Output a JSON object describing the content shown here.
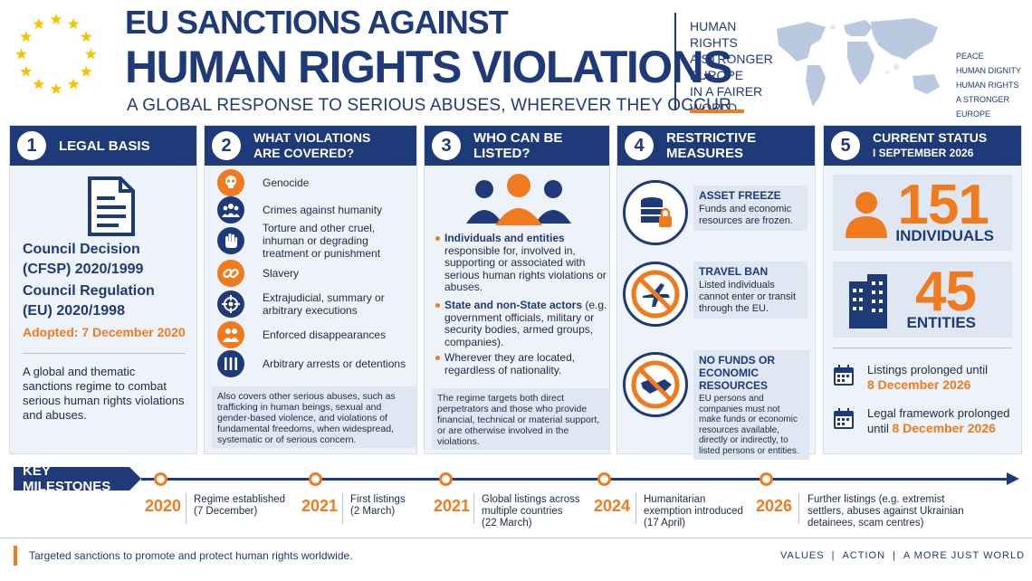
{
  "header": {
    "title_line1": "EU SANCTIONS AGAINST",
    "title_line2": "HUMAN RIGHTS VIOLATIONS",
    "subtitle": "A GLOBAL RESPONSE TO SERIOUS ABUSES, WHEREVER THEY OCCUR",
    "tagline": [
      "HUMAN",
      "RIGHTS",
      "A STRONGER",
      "EUROPE",
      "IN A FAIRER",
      "WORLD"
    ],
    "map_labels": [
      "PEACE",
      "HUMAN DIGNITY",
      "HUMAN RIGHTS",
      "A STRONGER EUROPE"
    ]
  },
  "panels": {
    "legal": {
      "number": "1",
      "title": "LEGAL BASIS",
      "decision_line1": "Council Decision",
      "decision_line2": "(CFSP) 2020/1999",
      "regulation_line1": "Council Regulation",
      "regulation_line2": "(EU) 2020/1998",
      "adopted": "Adopted: 7 December 2020",
      "description": "A global and thematic sanctions regime to combat serious human rights violations and abuses."
    },
    "violations": {
      "number": "2",
      "title_line1": "WHAT VIOLATIONS",
      "title_line2": "ARE COVERED?",
      "items": [
        {
          "label": "Genocide",
          "icon": "skull-icon"
        },
        {
          "label": "Crimes against humanity",
          "icon": "group-icon"
        },
        {
          "label": "Torture and other cruel, inhuman or degrading treatment or punishment",
          "icon": "hand-icon"
        },
        {
          "label": "Slavery",
          "icon": "chain-icon"
        },
        {
          "label": "Extrajudicial, summary or arbitrary executions",
          "icon": "target-icon"
        },
        {
          "label": "Enforced disappearances",
          "icon": "people-icon"
        },
        {
          "label": "Arbitrary arrests or detentions",
          "icon": "prison-bars-icon"
        }
      ],
      "note": "Also covers other serious abuses, such as trafficking in human beings, sexual and gender-based violence, and violations of fundamental freedoms, when widespread, systematic or of serious concern."
    },
    "listed": {
      "number": "3",
      "title": "WHO CAN BE LISTED?",
      "bullet1_bold": "Individuals and entities",
      "bullet1_rest": "responsible for, involved in, supporting or associated with serious human rights violations or abuses.",
      "bullet2_bold": "State and non-State actors",
      "bullet2_rest": "(e.g. government officials, military or security bodies, armed groups, companies).",
      "bullet3": "Wherever they are located, regardless of nationality.",
      "note": "The regime targets both direct perpetrators and those who provide financial, technical or material support, or are otherwise involved in the violations."
    },
    "measures": {
      "number": "4",
      "title": "RESTRICTIVE MEASURES",
      "items": [
        {
          "title": "ASSET FREEZE",
          "text": "Funds and economic resources are frozen.",
          "icon": "database-lock-icon"
        },
        {
          "title": "TRAVEL BAN",
          "text": "Listed individuals cannot enter or transit through the EU.",
          "icon": "no-plane-icon"
        },
        {
          "title": "NO FUNDS OR ECONOMIC RESOURCES",
          "text": "EU persons and companies must not make funds or economic resources available, directly or indirectly, to listed persons or entities.",
          "icon": "no-handshake-icon"
        }
      ]
    },
    "status": {
      "number": "5",
      "title_line1": "CURRENT STATUS",
      "title_line2": "I SEPTEMBER 2026",
      "individuals_count": "151",
      "individuals_label": "INDIVIDUALS",
      "entities_count": "45",
      "entities_label": "ENTITIES",
      "listings_text": "Listings prolonged until",
      "listings_date": "8 December 2026",
      "framework_text_line1": "Legal framework prolonged",
      "framework_text_line2": "until",
      "framework_date": "8 December 2026"
    }
  },
  "milestones": {
    "label": "KEY MILESTONES",
    "items": [
      {
        "year": "2020",
        "line1": "Regime established",
        "line2": "(7 December)",
        "line3": ""
      },
      {
        "year": "2021",
        "line1": "First listings",
        "line2": "(2 March)",
        "line3": ""
      },
      {
        "year": "2021",
        "line1": "Global listings across",
        "line2": "multiple countries",
        "line3": "(22 March)"
      },
      {
        "year": "2024",
        "line1": "Humanitarian",
        "line2": "exemption introduced",
        "line3": "(17 April)"
      },
      {
        "year": "2026",
        "line1": "Further listings (e.g. extremist",
        "line2": "settlers, abuses against Ukrainian",
        "line3": "detainees, scam centres)"
      }
    ]
  },
  "footer": {
    "text": "Targeted sanctions to promote and protect human rights worldwide.",
    "right": [
      "VALUES",
      "ACTION",
      "A MORE JUST WORLD"
    ]
  },
  "colors": {
    "navy": "#1f3a78",
    "orange": "#f07a1e",
    "panel_bg": "#eef3fa",
    "eu_star": "#f5c400"
  }
}
